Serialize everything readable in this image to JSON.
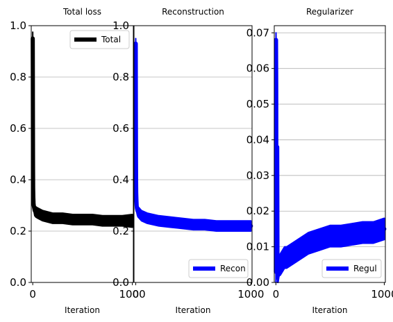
{
  "chart_data": [
    {
      "type": "line",
      "title": "Total loss",
      "xlabel": "Iteration",
      "ylabel": "",
      "xlim": [
        -15,
        1010
      ],
      "ylim": [
        0,
        1.0
      ],
      "xticks": [
        0,
        1000
      ],
      "xtick_labels": [
        "0",
        "1000"
      ],
      "yticks": [
        0.0,
        0.2,
        0.4,
        0.6,
        0.8,
        1.0
      ],
      "ytick_labels": [
        "0.0",
        "0.2",
        "0.4",
        "0.6",
        "0.8",
        "1.0"
      ],
      "grid": "y",
      "legend": "top-right",
      "series": [
        {
          "name": "Total",
          "color": "#000000",
          "x": [
            0,
            1,
            2,
            3,
            4,
            6,
            8,
            10,
            15,
            20,
            30,
            50,
            100,
            150,
            200,
            300,
            400,
            500,
            600,
            700,
            800,
            900,
            1000
          ],
          "y": [
            0.95,
            0.8,
            0.6,
            0.45,
            0.37,
            0.33,
            0.31,
            0.3,
            0.29,
            0.28,
            0.275,
            0.27,
            0.26,
            0.255,
            0.25,
            0.25,
            0.245,
            0.245,
            0.245,
            0.24,
            0.24,
            0.24,
            0.24
          ],
          "band": [
            0.025,
            0.02,
            0.02,
            0.02,
            0.02,
            0.02,
            0.02,
            0.02,
            0.02,
            0.02,
            0.02,
            0.02,
            0.02,
            0.02,
            0.02,
            0.02,
            0.02,
            0.02,
            0.02,
            0.02,
            0.02,
            0.02,
            0.025
          ]
        }
      ]
    },
    {
      "type": "line",
      "title": "Reconstruction",
      "xlabel": "Iteration",
      "ylabel": "",
      "xlim": [
        -15,
        1010
      ],
      "ylim": [
        0,
        1.0
      ],
      "xticks": [
        0,
        1000
      ],
      "xtick_labels": [
        "0",
        "1000"
      ],
      "yticks": [
        0.0,
        0.2,
        0.4,
        0.6,
        0.8,
        1.0
      ],
      "ytick_labels": [
        "0.0",
        "0.2",
        "0.4",
        "0.6",
        "0.8",
        "1.0"
      ],
      "grid": "y",
      "legend": "bottom-right",
      "series": [
        {
          "name": "Recon",
          "color": "#0000ff",
          "x": [
            0,
            1,
            2,
            3,
            4,
            6,
            8,
            10,
            15,
            20,
            30,
            50,
            100,
            150,
            200,
            300,
            400,
            500,
            600,
            700,
            800,
            900,
            1000
          ],
          "y": [
            0.93,
            0.7,
            0.5,
            0.4,
            0.35,
            0.32,
            0.3,
            0.29,
            0.28,
            0.275,
            0.27,
            0.26,
            0.25,
            0.245,
            0.24,
            0.235,
            0.23,
            0.225,
            0.225,
            0.22,
            0.22,
            0.22,
            0.22
          ],
          "band": [
            0.02,
            0.02,
            0.02,
            0.02,
            0.02,
            0.02,
            0.02,
            0.02,
            0.02,
            0.02,
            0.02,
            0.02,
            0.02,
            0.02,
            0.02,
            0.02,
            0.02,
            0.02,
            0.02,
            0.02,
            0.02,
            0.02,
            0.02
          ]
        }
      ]
    },
    {
      "type": "line",
      "title": "Regularizer",
      "xlabel": "Iteration",
      "ylabel": "",
      "xlim": [
        -15,
        1010
      ],
      "ylim": [
        0,
        0.072
      ],
      "xticks": [
        0,
        1000
      ],
      "xtick_labels": [
        "0",
        "1000"
      ],
      "yticks": [
        0.0,
        0.01,
        0.02,
        0.03,
        0.04,
        0.05,
        0.06,
        0.07
      ],
      "ytick_labels": [
        "0.00",
        "0.01",
        "0.02",
        "0.03",
        "0.04",
        "0.05",
        "0.06",
        "0.07"
      ],
      "grid": "y",
      "legend": "bottom-right",
      "series": [
        {
          "name": "Regul",
          "color": "#0000ff",
          "x": [
            0,
            1,
            3,
            5,
            7,
            9,
            12,
            15,
            20,
            25,
            30,
            40,
            60,
            80,
            100,
            150,
            200,
            250,
            300,
            400,
            500,
            600,
            700,
            800,
            900,
            1000
          ],
          "y": [
            0.003,
            0.068,
            0.055,
            0.01,
            0.004,
            0.03,
            0.038,
            0.002,
            0.002,
            0.003,
            0.004,
            0.005,
            0.006,
            0.007,
            0.007,
            0.008,
            0.009,
            0.01,
            0.011,
            0.012,
            0.013,
            0.013,
            0.0135,
            0.014,
            0.014,
            0.015
          ],
          "band": [
            0.003,
            0.002,
            0.01,
            0.006,
            0.003,
            0.006,
            0.003,
            0.002,
            0.002,
            0.002,
            0.002,
            0.003,
            0.003,
            0.003,
            0.003,
            0.003,
            0.003,
            0.003,
            0.003,
            0.003,
            0.003,
            0.003,
            0.003,
            0.003,
            0.003,
            0.003
          ]
        }
      ]
    }
  ]
}
